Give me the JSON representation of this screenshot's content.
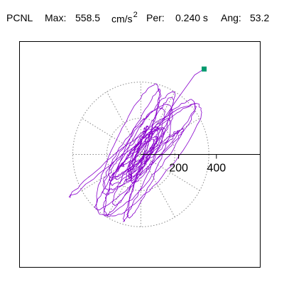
{
  "header": {
    "station": "PCNL",
    "max_label": "Max:",
    "max_value": "558.5",
    "max_unit": "cm/s",
    "max_unit_exp": "2",
    "per_label": "Per:",
    "per_value": "0.240 s",
    "ang_label": "Ang:",
    "ang_value": "53.2"
  },
  "chart_data": {
    "type": "scatter",
    "title": "",
    "xlabel": "",
    "ylabel": "",
    "xlim": [
      -640,
      630
    ],
    "ylim": [
      -560,
      560
    ],
    "tick_values": [
      200,
      400
    ],
    "tick_labels": [
      "200",
      "400"
    ],
    "rings": [
      180,
      360
    ],
    "grid": true,
    "marker_point": {
      "x": 335,
      "y": 425
    },
    "trace_color": "#8800cc",
    "marker_color": "#009a6e",
    "grid_color": "#888888"
  }
}
